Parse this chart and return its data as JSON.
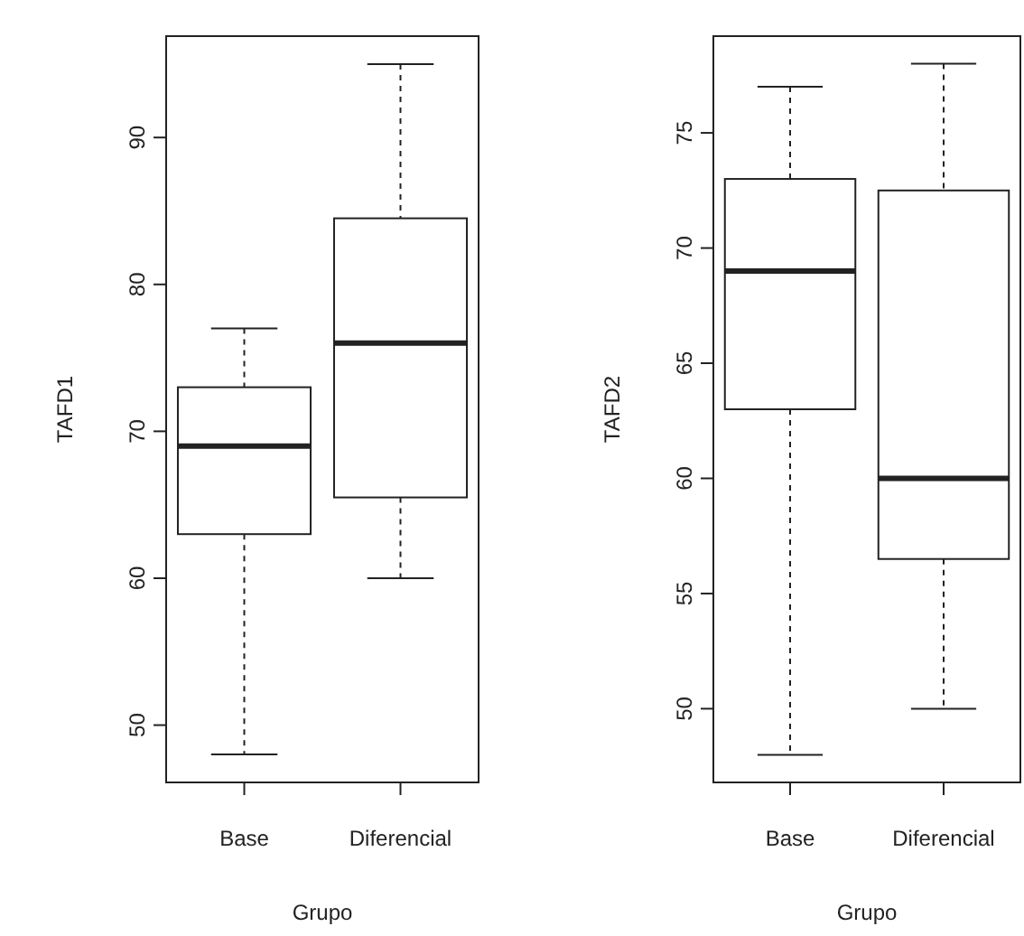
{
  "chart_data": [
    {
      "type": "box",
      "xlabel": "Grupo",
      "ylabel": "TAFD1",
      "categories": [
        "Base",
        "Diferencial"
      ],
      "boxes": [
        {
          "low": 48,
          "q1": 63,
          "median": 69,
          "q3": 73,
          "high": 77
        },
        {
          "low": 60,
          "q1": 65.5,
          "median": 76,
          "q3": 84.5,
          "high": 95
        }
      ],
      "ylim": [
        46.1,
        96.9
      ],
      "yticks": [
        50,
        60,
        70,
        80,
        90
      ]
    },
    {
      "type": "box",
      "xlabel": "Grupo",
      "ylabel": "TAFD2",
      "categories": [
        "Base",
        "Diferencial"
      ],
      "boxes": [
        {
          "low": 48,
          "q1": 63,
          "median": 69,
          "q3": 73,
          "high": 77
        },
        {
          "low": 50,
          "q1": 56.5,
          "median": 60,
          "q3": 72.5,
          "high": 78
        }
      ],
      "ylim": [
        46.8,
        79.2
      ],
      "yticks": [
        50,
        55,
        60,
        65,
        70,
        75
      ]
    }
  ]
}
